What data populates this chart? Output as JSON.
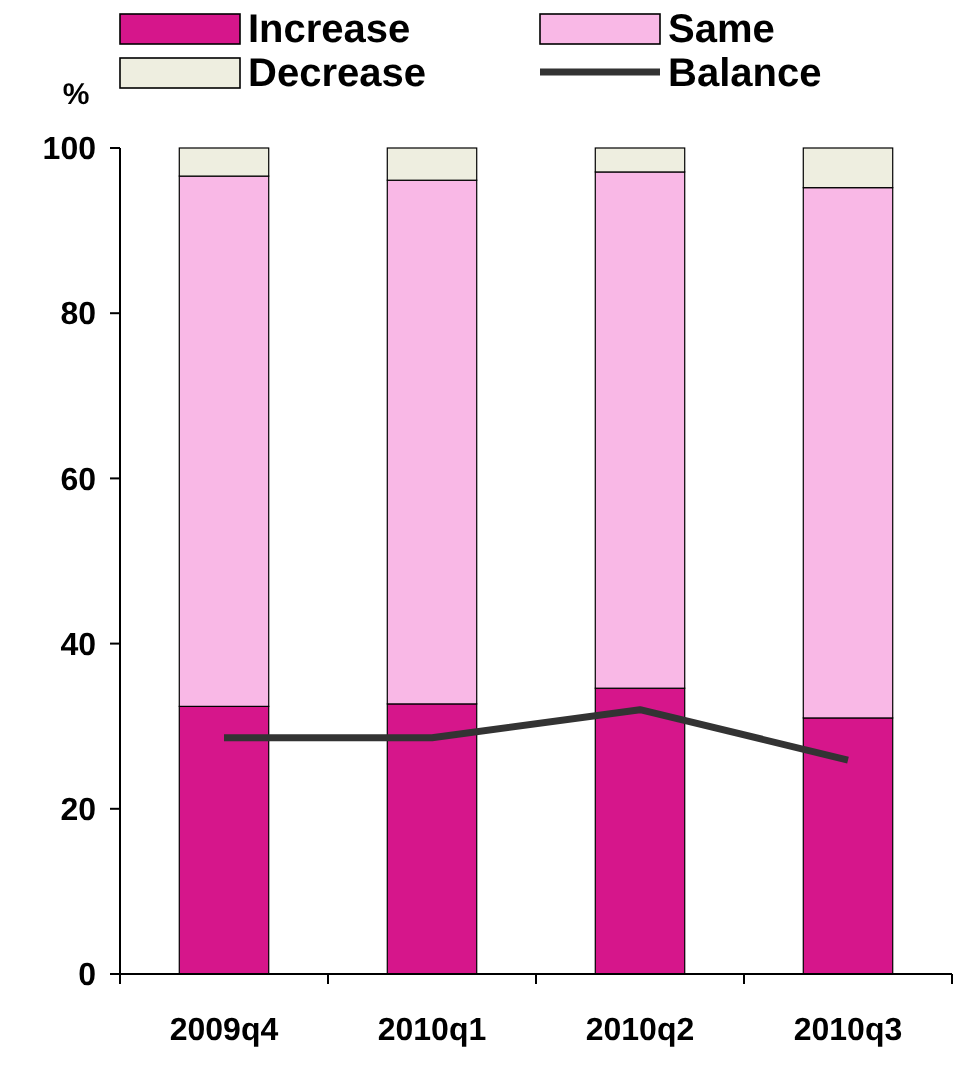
{
  "chart_data": {
    "type": "bar",
    "stacked": true,
    "ylabel": "%",
    "categories": [
      "2009q4",
      "2010q1",
      "2010q2",
      "2010q3"
    ],
    "series": [
      {
        "name": "Increase",
        "color": "#d6168b",
        "values": [
          32.4,
          32.7,
          34.6,
          31.0
        ]
      },
      {
        "name": "Same",
        "color": "#f9b8e6",
        "values": [
          64.2,
          63.4,
          62.5,
          64.2
        ]
      },
      {
        "name": "Decrease",
        "color": "#eeeee0",
        "values": [
          3.4,
          3.9,
          2.9,
          4.8
        ]
      },
      {
        "name": "Balance",
        "type": "line",
        "color": "#333333",
        "values": [
          28.6,
          28.6,
          32.0,
          25.9
        ]
      }
    ],
    "ylim": [
      0,
      100
    ],
    "yticks": [
      0,
      20,
      40,
      60,
      80,
      100
    ],
    "grid": false,
    "legend": "top",
    "marker": "none"
  }
}
